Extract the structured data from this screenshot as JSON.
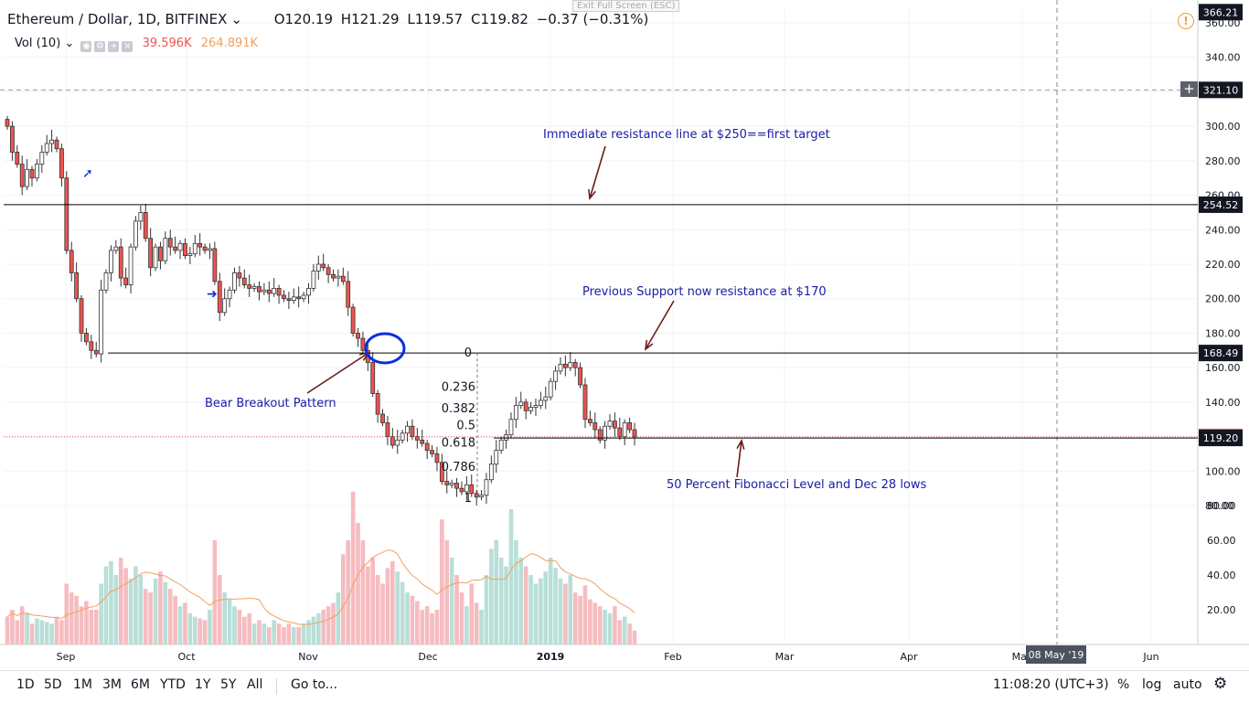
{
  "legend": {
    "symbol": "Ethereum / Dollar, 1D, BITFINEX",
    "open": "O120.19",
    "high": "H121.29",
    "low": "L119.57",
    "close": "C119.82",
    "change": "−0.37 (−0.31%)"
  },
  "volume_legend": {
    "label": "Vol (10)",
    "value1": "39.596K",
    "value2": "264.891K"
  },
  "fullscreen_hint": "Exit Full Screen (ESC)",
  "bottom": {
    "ranges": [
      "1D",
      "5D",
      "1M",
      "3M",
      "6M",
      "YTD",
      "1Y",
      "5Y",
      "All"
    ],
    "goto": "Go to...",
    "time": "11:08:20 (UTC+3)",
    "percent": "%",
    "log": "log",
    "auto": "auto"
  },
  "colors": {
    "up": "#26a69a",
    "down": "#ef5350",
    "vol_up": "#b8dfd8",
    "vol_down": "#f6bcc0",
    "annotation": "#1a1aa6",
    "arrow": "#6b1d1d",
    "ma": "#f0a060",
    "label_box": "#131722"
  },
  "chart_data": {
    "type": "candlestick",
    "x_tick_labels": [
      "Sep",
      "Oct",
      "Nov",
      "Dec",
      "2019",
      "Feb",
      "Mar",
      "Apr",
      "May",
      "Jun"
    ],
    "x_date_readout": "08 May '19",
    "y_tick_labels": [
      "80.00",
      "100.00",
      "120.00",
      "140.00",
      "160.00",
      "180.00",
      "200.00",
      "220.00",
      "240.00",
      "260.00",
      "280.00",
      "300.00",
      "320.00",
      "340.00",
      "360.00"
    ],
    "y_volume_ticks": [
      "20.00",
      "40.00",
      "60.00",
      "80.00"
    ],
    "ylim": [
      74,
      366
    ],
    "price_labels": [
      {
        "value": 366.21,
        "text": "366.21"
      },
      {
        "value": 321.1,
        "text": "321.10"
      },
      {
        "value": 254.52,
        "text": "254.52"
      },
      {
        "value": 168.49,
        "text": "168.49"
      },
      {
        "value": 119.82,
        "text": "119.82"
      },
      {
        "value": 119.2,
        "text": "119.20"
      }
    ],
    "horizontal_lines": [
      254.52,
      168.49,
      119.2
    ],
    "fibonacci": {
      "levels": [
        "0",
        "0.236",
        "0.382",
        "0.5",
        "0.618",
        "0.786",
        "1"
      ],
      "high": 168.49,
      "low": 84.2
    },
    "annotations": [
      {
        "text": "Immediate resistance line at $250==first target"
      },
      {
        "text": "Previous Support now resistance at $170"
      },
      {
        "text": "Bear Breakout Pattern"
      },
      {
        "text": "50 Percent Fibonacci Level and Dec 28 lows"
      }
    ],
    "closes": [
      300,
      285,
      278,
      265,
      275,
      270,
      278,
      285,
      290,
      292,
      287,
      270,
      228,
      215,
      200,
      180,
      175,
      170,
      168,
      205,
      215,
      228,
      230,
      212,
      208,
      230,
      245,
      250,
      235,
      218,
      230,
      222,
      235,
      230,
      228,
      232,
      225,
      226,
      232,
      230,
      228,
      229,
      210,
      192,
      200,
      205,
      215,
      212,
      208,
      206,
      207,
      204,
      205,
      203,
      206,
      202,
      200,
      199,
      201,
      200,
      202,
      206,
      216,
      220,
      218,
      214,
      212,
      213,
      210,
      195,
      180,
      177,
      170,
      163,
      145,
      133,
      128,
      120,
      115,
      118,
      122,
      126,
      120,
      118,
      116,
      112,
      110,
      105,
      94,
      92,
      93,
      90,
      88,
      92,
      87,
      85,
      86,
      95,
      104,
      112,
      118,
      121,
      130,
      138,
      140,
      135,
      137,
      138,
      141,
      143,
      152,
      158,
      162,
      160,
      163,
      160,
      150,
      130,
      128,
      124,
      118,
      126,
      129,
      125,
      120,
      128,
      124,
      119.82
    ],
    "volumes": [
      16,
      20,
      14,
      22,
      18,
      12,
      15,
      14,
      13,
      12,
      16,
      14,
      35,
      30,
      28,
      22,
      25,
      20,
      20,
      35,
      45,
      48,
      40,
      50,
      44,
      38,
      45,
      40,
      32,
      30,
      38,
      42,
      36,
      32,
      28,
      22,
      24,
      18,
      16,
      15,
      14,
      20,
      60,
      40,
      30,
      26,
      22,
      20,
      16,
      18,
      12,
      14,
      12,
      10,
      14,
      12,
      10,
      12,
      10,
      10,
      12,
      14,
      16,
      18,
      20,
      22,
      24,
      30,
      52,
      60,
      88,
      70,
      60,
      45,
      50,
      40,
      35,
      44,
      48,
      42,
      36,
      30,
      28,
      25,
      20,
      22,
      18,
      20,
      72,
      60,
      50,
      40,
      30,
      22,
      35,
      24,
      20,
      40,
      55,
      60,
      50,
      45,
      78,
      60,
      50,
      45,
      40,
      35,
      38,
      42,
      50,
      44,
      38,
      35,
      40,
      30,
      28,
      34,
      26,
      24,
      22,
      20,
      18,
      22,
      14,
      16,
      12,
      8
    ]
  }
}
